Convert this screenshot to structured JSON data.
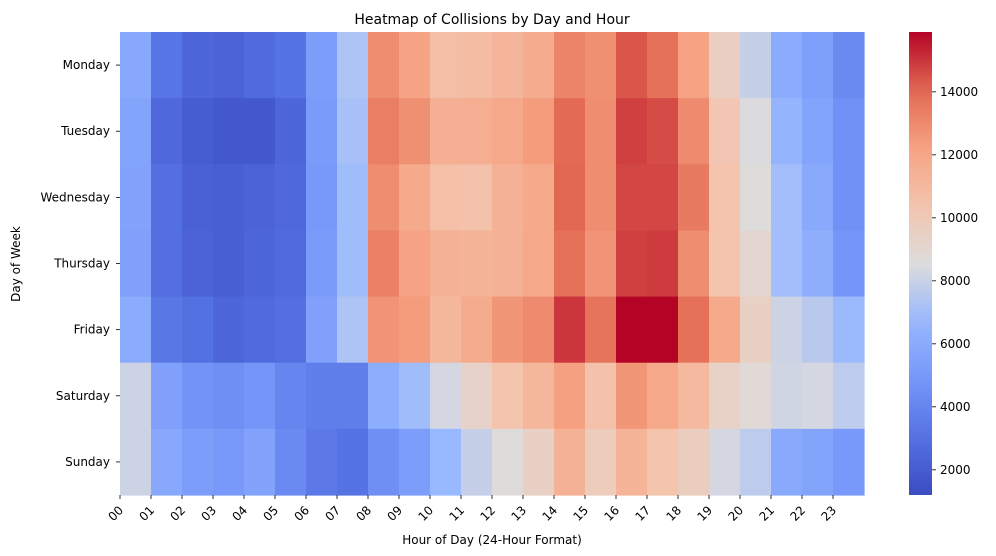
{
  "chart_data": {
    "type": "heatmap",
    "title": "Heatmap of Collisions by Day and Hour",
    "xlabel": "Hour of Day (24-Hour Format)",
    "ylabel": "Day of Week",
    "x_categories": [
      "00",
      "01",
      "02",
      "03",
      "04",
      "05",
      "06",
      "07",
      "08",
      "09",
      "10",
      "11",
      "12",
      "13",
      "14",
      "15",
      "16",
      "17",
      "18",
      "19",
      "20",
      "21",
      "22",
      "23"
    ],
    "y_categories": [
      "Monday",
      "Tuesday",
      "Wednesday",
      "Thursday",
      "Friday",
      "Saturday",
      "Sunday"
    ],
    "values": [
      [
        5800,
        3200,
        2500,
        2300,
        2700,
        3100,
        5200,
        7300,
        12900,
        12100,
        10700,
        10800,
        11200,
        11700,
        13200,
        12800,
        14400,
        13800,
        12200,
        9600,
        7900,
        6000,
        5300,
        4200
      ],
      [
        5600,
        2600,
        2000,
        1800,
        1800,
        2500,
        5100,
        7100,
        13400,
        12800,
        11500,
        11600,
        11900,
        12400,
        14000,
        12900,
        14800,
        14600,
        13000,
        10200,
        8500,
        6500,
        5600,
        4600
      ],
      [
        5500,
        2900,
        2200,
        2100,
        2300,
        2600,
        5000,
        6900,
        12900,
        11800,
        10600,
        10500,
        11400,
        11800,
        14100,
        12900,
        14700,
        14700,
        13500,
        10400,
        8600,
        7000,
        5900,
        4600
      ],
      [
        5400,
        2900,
        2300,
        2100,
        2400,
        2700,
        5100,
        6900,
        13300,
        12100,
        11400,
        11300,
        11400,
        11900,
        13800,
        12700,
        14800,
        14900,
        12900,
        10300,
        9000,
        7000,
        6200,
        4800
      ],
      [
        6000,
        3300,
        3000,
        2500,
        2700,
        2900,
        5400,
        7300,
        12700,
        12400,
        11100,
        11700,
        12600,
        13000,
        15000,
        13700,
        15900,
        15900,
        13800,
        11800,
        9500,
        8100,
        7600,
        6800
      ],
      [
        8100,
        5400,
        4700,
        4500,
        4800,
        4000,
        3700,
        3700,
        6100,
        6900,
        8300,
        9300,
        10400,
        11100,
        12300,
        10500,
        12600,
        11900,
        11000,
        9400,
        8800,
        8200,
        8300,
        7700
      ],
      [
        8100,
        5800,
        5200,
        5000,
        5500,
        4200,
        3400,
        3100,
        4500,
        5200,
        6700,
        7900,
        8600,
        9500,
        11400,
        9800,
        11300,
        10400,
        9700,
        8300,
        7700,
        5900,
        5600,
        5000
      ]
    ],
    "colorbar": {
      "min": 1200,
      "max": 15900,
      "ticks": [
        2000,
        4000,
        6000,
        8000,
        10000,
        12000,
        14000
      ]
    },
    "colormap": "coolwarm"
  }
}
